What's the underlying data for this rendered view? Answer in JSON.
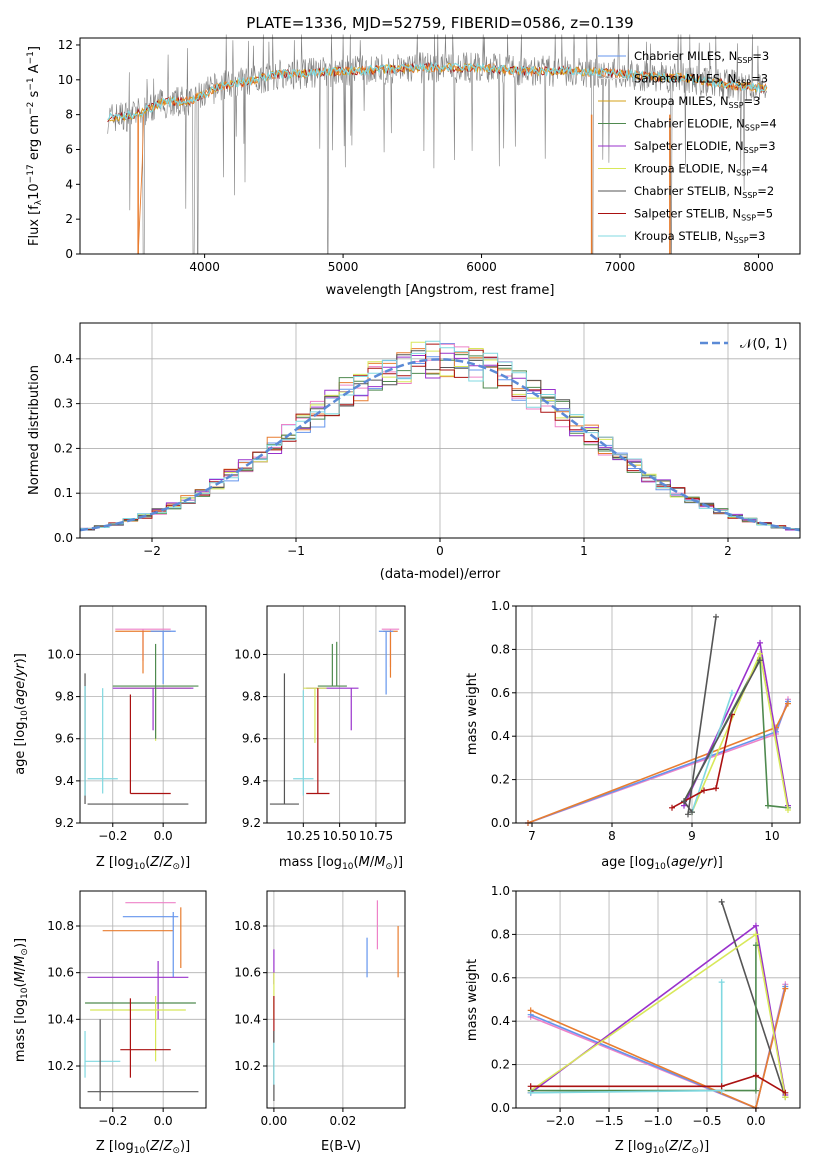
{
  "figure": {
    "title": "PLATE=1336, MJD=52759, FIBERID=0586, z=0.139"
  },
  "colors": {
    "chabrier_miles": "#6495ed",
    "salpeter_miles": "#e0e0e0",
    "kroupa_miles": "#d4a017",
    "chabrier_elodie": "#4f8a4f",
    "salpeter_elodie": "#9932cc",
    "kroupa_elodie": "#d8e85a",
    "chabrier_stelib": "#555555",
    "salpeter_stelib": "#aa1111",
    "kroupa_stelib": "#80d8e0",
    "orange": "#e87d30",
    "pink": "#ee82c8",
    "normal": "#5b8ad6"
  },
  "chart_data": [
    {
      "id": "spectrum",
      "type": "line",
      "xlabel": "wavelength [Angstrom, rest frame]",
      "ylabel": "Flux [f_λ10^-17 erg cm^-2 s^-1 A^-1]",
      "xlim": [
        3100,
        8300
      ],
      "ylim": [
        0,
        12.4
      ],
      "xticks": [
        4000,
        5000,
        6000,
        7000,
        8000
      ],
      "yticks": [
        0,
        2,
        4,
        6,
        8,
        10,
        12
      ],
      "grid": false,
      "legend_position": "right",
      "legend": [
        {
          "label": "Chabrier MILES, N",
          "sub": "SSP",
          "suffix": "=3",
          "color": "#6495ed"
        },
        {
          "label": "Salpeter MILES, N",
          "sub": "SSP",
          "suffix": "=3",
          "color": "#e0e0e0"
        },
        {
          "label": "Kroupa MILES, N",
          "sub": "SSP",
          "suffix": "=3",
          "color": "#d4a017"
        },
        {
          "label": "Chabrier ELODIE, N",
          "sub": "SSP",
          "suffix": "=4",
          "color": "#4f8a4f"
        },
        {
          "label": "Salpeter ELODIE, N",
          "sub": "SSP",
          "suffix": "=3",
          "color": "#9932cc"
        },
        {
          "label": "Kroupa ELODIE, N",
          "sub": "SSP",
          "suffix": "=4",
          "color": "#d8e85a"
        },
        {
          "label": "Chabrier STELIB, N",
          "sub": "SSP",
          "suffix": "=2",
          "color": "#555555"
        },
        {
          "label": "Salpeter STELIB, N",
          "sub": "SSP",
          "suffix": "=5",
          "color": "#aa1111"
        },
        {
          "label": "Kroupa STELIB, N",
          "sub": "SSP",
          "suffix": "=3",
          "color": "#80d8e0"
        }
      ],
      "series_summary": {
        "x_start": 3300,
        "x_end": 8060,
        "continuum": [
          [
            3300,
            7.8
          ],
          [
            3500,
            8.0
          ],
          [
            3700,
            8.7
          ],
          [
            3900,
            8.8
          ],
          [
            4100,
            9.6
          ],
          [
            4300,
            9.9
          ],
          [
            4500,
            10.3
          ],
          [
            4800,
            10.4
          ],
          [
            5000,
            10.5
          ],
          [
            5300,
            10.6
          ],
          [
            5600,
            10.7
          ],
          [
            6000,
            10.7
          ],
          [
            6300,
            10.5
          ],
          [
            6600,
            10.5
          ],
          [
            6900,
            10.4
          ],
          [
            7200,
            10.2
          ],
          [
            7500,
            10.1
          ],
          [
            7800,
            9.7
          ],
          [
            8060,
            9.5
          ]
        ],
        "absorption_drops": [
          3560,
          3920,
          3950,
          4890,
          6800,
          7370
        ]
      }
    },
    {
      "id": "residuals",
      "type": "bar",
      "xlabel": "(data-model)/error",
      "ylabel": "Normed distribution",
      "xlim": [
        -2.5,
        2.5
      ],
      "ylim": [
        0,
        0.48
      ],
      "xticks": [
        -2,
        -1,
        0,
        1,
        2
      ],
      "yticks": [
        0.0,
        0.1,
        0.2,
        0.3,
        0.4
      ],
      "grid": true,
      "legend": [
        {
          "label": "𝒩(0, 1)",
          "color": "#5b8ad6"
        }
      ],
      "bin_width": 0.1
    },
    {
      "id": "age_vs_z",
      "type": "scatter",
      "xlabel": "Z [log10(Z/Z⊙)]",
      "ylabel": "age [log10(age/yr)]",
      "xlim": [
        -0.33,
        0.17
      ],
      "ylim": [
        9.2,
        10.23
      ],
      "xticks": [
        -0.2,
        0.0
      ],
      "yticks": [
        9.2,
        9.4,
        9.6,
        9.8,
        10.0
      ],
      "grid": true
    },
    {
      "id": "age_vs_mass",
      "type": "scatter",
      "xlabel": "mass [log10(M/M⊙)]",
      "ylabel": "",
      "xlim": [
        10.0,
        10.95
      ],
      "ylim": [
        9.2,
        10.23
      ],
      "xticks": [
        10.25,
        10.5,
        10.75
      ],
      "yticks": [
        9.2,
        9.4,
        9.6,
        9.8,
        10.0
      ],
      "grid": true
    },
    {
      "id": "weight_vs_age",
      "type": "line",
      "xlabel": "age [log10(age/yr)]",
      "ylabel": "mass weight",
      "xlim": [
        6.8,
        10.35
      ],
      "ylim": [
        0,
        1
      ],
      "xticks": [
        7,
        8,
        9,
        10
      ],
      "yticks": [
        0.0,
        0.2,
        0.4,
        0.6,
        0.8,
        1.0
      ],
      "grid": true
    },
    {
      "id": "mass_vs_z",
      "type": "scatter",
      "xlabel": "Z [log10(Z/Z⊙)]",
      "ylabel": "mass [log10(M/M⊙)]",
      "xlim": [
        -0.33,
        0.17
      ],
      "ylim": [
        10.02,
        10.95
      ],
      "xticks": [
        -0.2,
        0.0
      ],
      "yticks": [
        10.2,
        10.4,
        10.6,
        10.8
      ],
      "grid": true
    },
    {
      "id": "mass_vs_ebv",
      "type": "scatter",
      "xlabel": "E(B-V)",
      "ylabel": "",
      "xlim": [
        -0.002,
        0.038
      ],
      "ylim": [
        10.02,
        10.95
      ],
      "xticks": [
        0.0,
        0.02
      ],
      "yticks": [
        10.2,
        10.4,
        10.6,
        10.8
      ],
      "grid": true
    },
    {
      "id": "weight_vs_z",
      "type": "line",
      "xlabel": "Z [log10(Z/Z⊙)]",
      "ylabel": "mass weight",
      "xlim": [
        -2.45,
        0.45
      ],
      "ylim": [
        0,
        1
      ],
      "xticks": [
        -2.0,
        -1.5,
        -1.0,
        -0.5,
        0.0
      ],
      "yticks": [
        0.0,
        0.2,
        0.4,
        0.6,
        0.8,
        1.0
      ],
      "grid": true
    }
  ],
  "legend_extra": {
    "normal_label": "𝒩(0, 1)"
  }
}
